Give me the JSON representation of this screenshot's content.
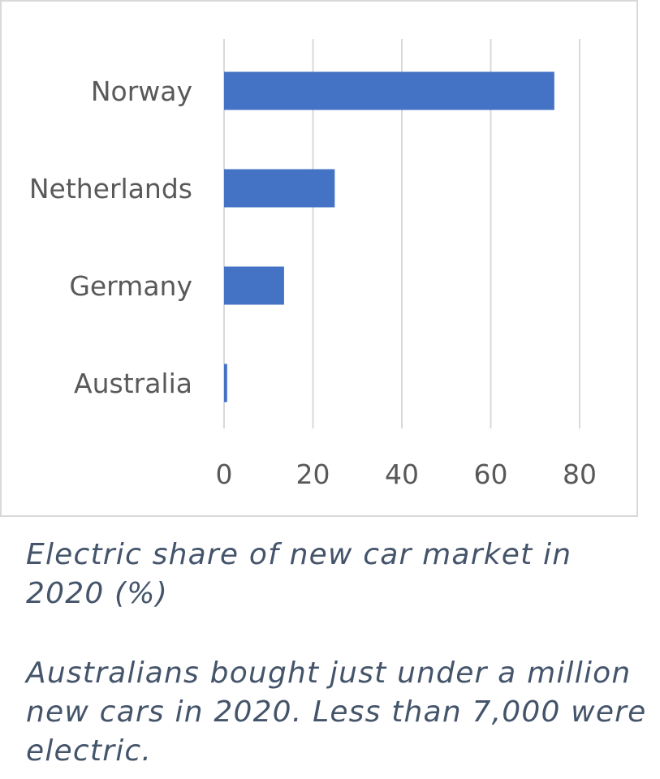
{
  "chart_data": {
    "type": "bar",
    "orientation": "horizontal",
    "categories": [
      "Norway",
      "Netherlands",
      "Germany",
      "Australia"
    ],
    "values": [
      74.3,
      24.9,
      13.5,
      0.7
    ],
    "xlim": [
      0,
      80
    ],
    "xticks": [
      "0",
      "20",
      "40",
      "60",
      "80"
    ],
    "grid": true,
    "bar_color": "#4472c4",
    "title": "",
    "xlabel": "",
    "ylabel": ""
  },
  "caption": {
    "title": "Electric share of new car market in 2020 (%)",
    "note": "Australians bought just under a million new cars in 2020. Less than 7,000 were electric."
  }
}
